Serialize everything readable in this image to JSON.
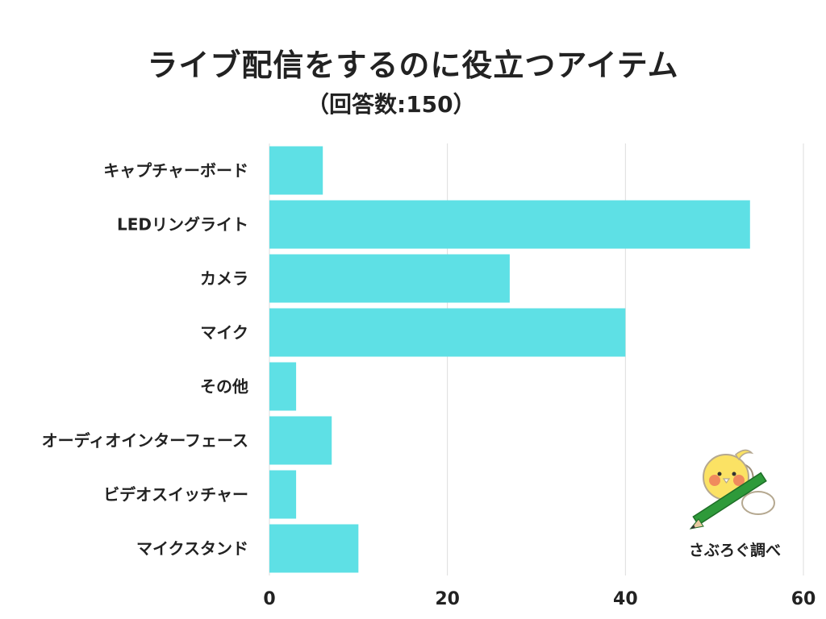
{
  "header": {
    "title": "ライブ配信をするのに役立つアイテム",
    "subtitle": "（回答数:150）"
  },
  "credit": {
    "label": "さぶろぐ調べ",
    "icon": "bird-with-pencil-icon"
  },
  "chart_data": {
    "type": "bar",
    "orientation": "horizontal",
    "title": "ライブ配信をするのに役立つアイテム",
    "subtitle": "（回答数:150）",
    "categories": [
      "キャプチャーボード",
      "LEDリングライト",
      "カメラ",
      "マイク",
      "その他",
      "オーディオインターフェース",
      "ビデオスイッチャー",
      "マイクスタンド"
    ],
    "values": [
      6,
      54,
      27,
      40,
      3,
      7,
      3,
      10
    ],
    "xlim": [
      0,
      60
    ],
    "xticks": [
      "0",
      "20",
      "40",
      "60"
    ],
    "xtick_values": [
      0,
      20,
      40,
      60
    ],
    "grid": "vertical",
    "legend": "none",
    "bar_color": "#5ee0e5",
    "grid_color": "#dddddd"
  }
}
